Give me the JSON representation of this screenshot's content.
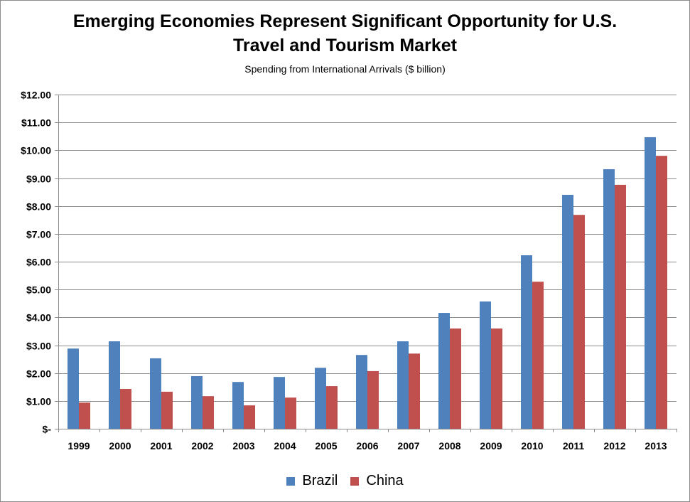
{
  "chart_data": {
    "type": "bar",
    "title": "Emerging Economies Represent Significant Opportunity for U.S. Travel and Tourism Market",
    "title_lines": [
      "Emerging Economies Represent Significant Opportunity for U.S.",
      "Travel and Tourism Market"
    ],
    "subtitle": "Spending from International Arrivals ($ billion)",
    "xlabel": "",
    "ylabel": "",
    "ylim": [
      0,
      12
    ],
    "yticks": [
      0,
      1,
      2,
      3,
      4,
      5,
      6,
      7,
      8,
      9,
      10,
      11,
      12
    ],
    "ytick_labels": [
      "$-",
      "$1.00",
      "$2.00",
      "$3.00",
      "$4.00",
      "$5.00",
      "$6.00",
      "$7.00",
      "$8.00",
      "$9.00",
      "$10.00",
      "$11.00",
      "$12.00"
    ],
    "grid": true,
    "legend_position": "bottom",
    "categories": [
      "1999",
      "2000",
      "2001",
      "2002",
      "2003",
      "2004",
      "2005",
      "2006",
      "2007",
      "2008",
      "2009",
      "2010",
      "2011",
      "2012",
      "2013"
    ],
    "series": [
      {
        "name": "Brazil",
        "color": "#4f81bd",
        "values": [
          2.88,
          3.14,
          2.53,
          1.89,
          1.68,
          1.86,
          2.19,
          2.65,
          3.14,
          4.16,
          4.57,
          6.23,
          8.4,
          9.32,
          10.47
        ]
      },
      {
        "name": "China",
        "color": "#c0504d",
        "values": [
          0.94,
          1.43,
          1.33,
          1.17,
          0.84,
          1.12,
          1.53,
          2.07,
          2.7,
          3.6,
          3.6,
          5.28,
          7.68,
          8.76,
          9.8
        ]
      }
    ]
  }
}
